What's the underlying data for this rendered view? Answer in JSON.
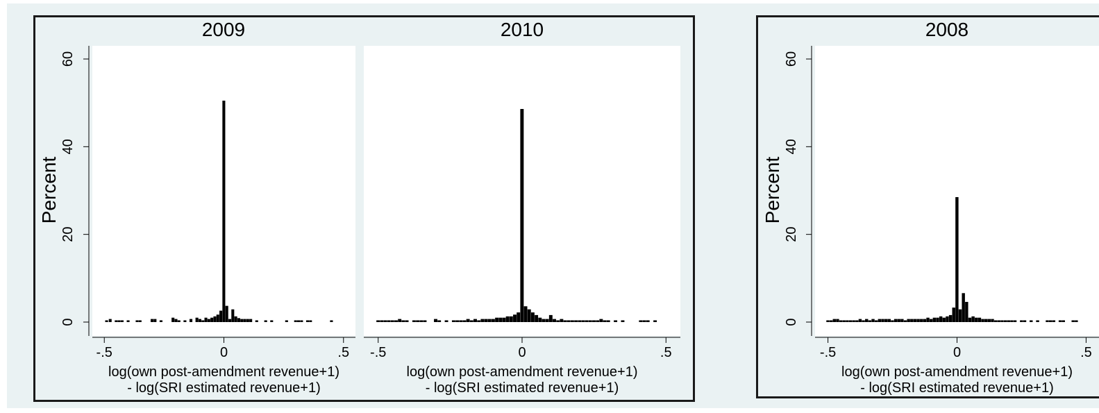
{
  "chart_data": [
    {
      "type": "bar",
      "title": "2009",
      "xlabel": [
        "log(own post-amendment revenue+1)",
        " - log(SRI estimated revenue+1)"
      ],
      "ylabel": "Percent",
      "xlim": [
        -0.55,
        0.55
      ],
      "ylim": [
        0,
        60
      ],
      "xticks": [
        "-.5",
        "0",
        ".5"
      ],
      "yticks": [
        "0",
        "20",
        "40",
        "60"
      ],
      "bin_width": 0.0125,
      "x": [
        -0.49,
        -0.475,
        -0.45,
        -0.4375,
        -0.425,
        -0.4,
        -0.3625,
        -0.35,
        -0.3,
        -0.2875,
        -0.2625,
        -0.2125,
        -0.2,
        -0.1875,
        -0.1625,
        -0.1375,
        -0.1125,
        -0.1,
        -0.0875,
        -0.075,
        -0.0625,
        -0.05,
        -0.0375,
        -0.025,
        -0.0125,
        0,
        0.0125,
        0.025,
        0.0375,
        0.05,
        0.0625,
        0.075,
        0.0875,
        0.1,
        0.1125,
        0.1375,
        0.175,
        0.2,
        0.2625,
        0.3,
        0.3125,
        0.325,
        0.35,
        0.3625,
        0.45
      ],
      "values": [
        0.4,
        0.7,
        0.4,
        0.4,
        0.4,
        0.4,
        0.4,
        0.4,
        0.7,
        0.7,
        0.4,
        1.0,
        0.7,
        0.4,
        0.4,
        0.7,
        1.0,
        0.7,
        0.4,
        1.0,
        0.7,
        1.0,
        1.3,
        1.7,
        2.6,
        50.5,
        3.7,
        0.7,
        2.9,
        1.3,
        0.9,
        0.7,
        0.7,
        0.7,
        0.7,
        0.4,
        0.4,
        0.4,
        0.4,
        0.4,
        0.4,
        0.4,
        0.4,
        0.4,
        0.4
      ]
    },
    {
      "type": "bar",
      "title": "2010",
      "xlabel": [
        "log(own post-amendment revenue+1)",
        " - log(SRI estimated revenue+1)"
      ],
      "ylabel": "",
      "xlim": [
        -0.55,
        0.55
      ],
      "ylim": [
        0,
        60
      ],
      "xticks": [
        "-.5",
        "0",
        ".5"
      ],
      "yticks": [],
      "bin_width": 0.0125,
      "x": [
        -0.5,
        -0.4875,
        -0.475,
        -0.4625,
        -0.45,
        -0.4375,
        -0.425,
        -0.4125,
        -0.4,
        -0.375,
        -0.3625,
        -0.35,
        -0.3375,
        -0.3,
        -0.2875,
        -0.2625,
        -0.2375,
        -0.225,
        -0.2125,
        -0.2,
        -0.1875,
        -0.175,
        -0.1625,
        -0.15,
        -0.1375,
        -0.125,
        -0.1125,
        -0.1,
        -0.0875,
        -0.075,
        -0.0625,
        -0.05,
        -0.0375,
        -0.025,
        -0.0125,
        0,
        0.0125,
        0.025,
        0.0375,
        0.05,
        0.0625,
        0.075,
        0.0875,
        0.1,
        0.1125,
        0.125,
        0.1375,
        0.15,
        0.1625,
        0.175,
        0.1875,
        0.2,
        0.2125,
        0.225,
        0.2375,
        0.25,
        0.2625,
        0.275,
        0.2875,
        0.3,
        0.325,
        0.35,
        0.4125,
        0.425,
        0.4375,
        0.4625
      ],
      "values": [
        0.4,
        0.4,
        0.4,
        0.4,
        0.4,
        0.4,
        0.7,
        0.4,
        0.4,
        0.4,
        0.4,
        0.4,
        0.4,
        0.7,
        0.4,
        0.4,
        0.4,
        0.4,
        0.4,
        0.4,
        0.7,
        0.4,
        0.7,
        0.4,
        0.7,
        0.7,
        0.7,
        0.7,
        1.0,
        1.0,
        1.0,
        1.3,
        1.3,
        1.7,
        2.2,
        48.6,
        3.6,
        2.9,
        2.2,
        1.6,
        1.0,
        0.7,
        0.7,
        1.6,
        0.7,
        0.4,
        0.7,
        0.4,
        0.4,
        0.4,
        0.4,
        0.4,
        0.4,
        0.4,
        0.4,
        0.4,
        0.4,
        0.7,
        0.4,
        0.4,
        0.4,
        0.4,
        0.4,
        0.4,
        0.4,
        0.4
      ]
    },
    {
      "type": "bar",
      "title": "2008",
      "xlabel": [
        "log(own post-amendment revenue+1)",
        " - log(SRI estimated revenue+1)"
      ],
      "ylabel": "Percent",
      "xlim": [
        -0.55,
        0.55
      ],
      "ylim": [
        0,
        60
      ],
      "xticks": [
        "-.5",
        "0",
        ".5"
      ],
      "yticks": [
        "0",
        "20",
        "40",
        "60"
      ],
      "bin_width": 0.0125,
      "x": [
        -0.5,
        -0.4875,
        -0.475,
        -0.4625,
        -0.45,
        -0.4375,
        -0.425,
        -0.4125,
        -0.4,
        -0.3875,
        -0.375,
        -0.3625,
        -0.35,
        -0.3375,
        -0.325,
        -0.3125,
        -0.3,
        -0.2875,
        -0.275,
        -0.2625,
        -0.25,
        -0.2375,
        -0.225,
        -0.2125,
        -0.2,
        -0.1875,
        -0.175,
        -0.1625,
        -0.15,
        -0.1375,
        -0.125,
        -0.1125,
        -0.1,
        -0.0875,
        -0.075,
        -0.0625,
        -0.05,
        -0.0375,
        -0.025,
        -0.0125,
        0,
        0.0125,
        0.025,
        0.0375,
        0.05,
        0.0625,
        0.075,
        0.0875,
        0.1,
        0.1125,
        0.125,
        0.1375,
        0.15,
        0.1625,
        0.175,
        0.1875,
        0.2,
        0.2125,
        0.225,
        0.25,
        0.2625,
        0.2875,
        0.3125,
        0.35,
        0.3625,
        0.375,
        0.4,
        0.4125,
        0.45,
        0.4625
      ],
      "values": [
        0.4,
        0.4,
        0.7,
        0.7,
        0.4,
        0.4,
        0.4,
        0.4,
        0.4,
        0.4,
        0.7,
        0.4,
        0.7,
        0.4,
        0.7,
        0.4,
        0.7,
        0.7,
        0.7,
        0.7,
        0.4,
        0.7,
        0.7,
        0.7,
        0.4,
        0.7,
        0.7,
        0.7,
        0.7,
        0.7,
        0.7,
        1.0,
        0.7,
        1.0,
        1.0,
        1.3,
        1.0,
        1.3,
        1.6,
        3.3,
        28.5,
        2.9,
        6.6,
        4.6,
        1.0,
        1.3,
        1.0,
        1.0,
        0.7,
        0.7,
        0.7,
        0.7,
        0.4,
        0.4,
        0.4,
        0.4,
        0.4,
        0.4,
        0.4,
        0.4,
        0.4,
        0.4,
        0.4,
        0.4,
        0.4,
        0.4,
        0.4,
        0.4,
        0.4,
        0.4
      ]
    }
  ]
}
